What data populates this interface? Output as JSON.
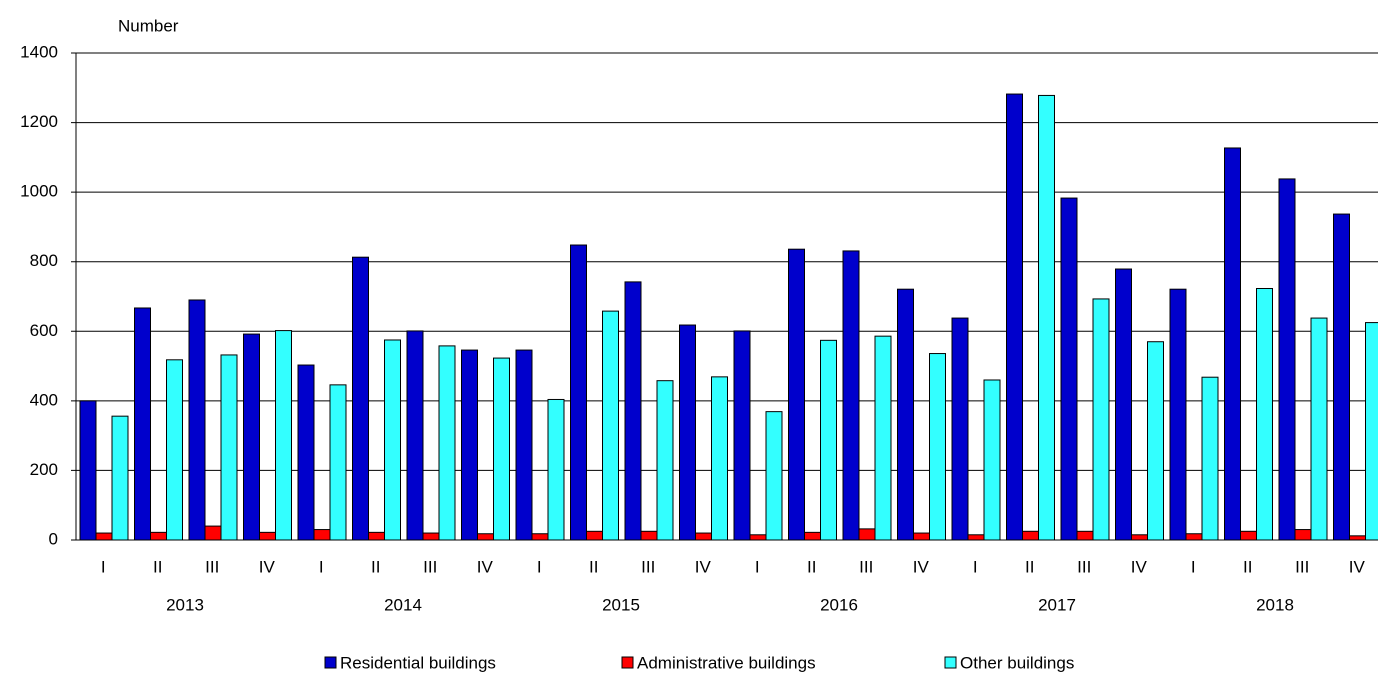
{
  "chart_data": {
    "type": "bar",
    "y_axis_label": "Number",
    "categories": [
      "I",
      "II",
      "III",
      "IV",
      "I",
      "II",
      "III",
      "IV",
      "I",
      "II",
      "III",
      "IV",
      "I",
      "II",
      "III",
      "IV",
      "I",
      "II",
      "III",
      "IV",
      "I",
      "II",
      "III",
      "IV"
    ],
    "year_groups": [
      "2013",
      "2014",
      "2015",
      "2016",
      "2017",
      "2018"
    ],
    "series": [
      {
        "name": "Residential buildings",
        "color": "#0000cc",
        "values": [
          400,
          667,
          690,
          592,
          503,
          813,
          601,
          546,
          546,
          848,
          742,
          618,
          601,
          836,
          831,
          721,
          638,
          1282,
          983,
          779,
          721,
          1127,
          1038,
          937
        ]
      },
      {
        "name": "Administrative buildings",
        "color": "#ff0000",
        "values": [
          20,
          22,
          40,
          22,
          30,
          22,
          20,
          18,
          18,
          25,
          25,
          20,
          15,
          22,
          32,
          20,
          15,
          25,
          25,
          15,
          18,
          25,
          30,
          12
        ]
      },
      {
        "name": "Other buildings",
        "color": "#33ffff",
        "values": [
          356,
          518,
          532,
          602,
          446,
          575,
          558,
          523,
          404,
          658,
          458,
          469,
          369,
          574,
          586,
          536,
          460,
          1278,
          693,
          570,
          468,
          723,
          638,
          625
        ]
      }
    ],
    "ylim": [
      0,
      1400
    ],
    "yticks": [
      0,
      200,
      400,
      600,
      800,
      1000,
      1200,
      1400
    ],
    "grid": true,
    "legend": "bottom"
  }
}
